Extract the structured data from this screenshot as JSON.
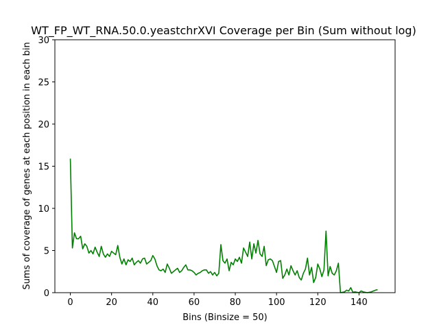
{
  "chart_data": {
    "type": "line",
    "title": "WT_FP_WT_RNA.50.0.yeastchrXVI Coverage per Bin (Sum without log)",
    "xlabel": "Bins (Binsize = 50)",
    "ylabel": "Sums of coverage of genes at each position in each bin",
    "xlim": [
      -7.5,
      157.5
    ],
    "ylim": [
      0,
      30
    ],
    "xticks": [
      0,
      20,
      40,
      60,
      80,
      100,
      120,
      140
    ],
    "yticks": [
      0,
      5,
      10,
      15,
      20,
      25,
      30
    ],
    "grid": false,
    "legend": "none",
    "series": [
      {
        "color": "#008000",
        "x": [
          0,
          1,
          2,
          3,
          4,
          5,
          6,
          7,
          8,
          9,
          10,
          11,
          12,
          13,
          14,
          15,
          16,
          17,
          18,
          19,
          20,
          21,
          22,
          23,
          24,
          25,
          26,
          27,
          28,
          29,
          30,
          31,
          32,
          33,
          34,
          35,
          36,
          37,
          38,
          39,
          40,
          41,
          42,
          43,
          44,
          45,
          46,
          47,
          48,
          49,
          50,
          51,
          52,
          53,
          54,
          55,
          56,
          57,
          58,
          59,
          60,
          61,
          62,
          63,
          64,
          65,
          66,
          67,
          68,
          69,
          70,
          71,
          72,
          73,
          74,
          75,
          76,
          77,
          78,
          79,
          80,
          81,
          82,
          83,
          84,
          85,
          86,
          87,
          88,
          89,
          90,
          91,
          92,
          93,
          94,
          95,
          96,
          97,
          98,
          99,
          100,
          101,
          102,
          103,
          104,
          105,
          106,
          107,
          108,
          109,
          110,
          111,
          112,
          113,
          114,
          115,
          116,
          117,
          118,
          119,
          120,
          121,
          122,
          123,
          124,
          125,
          126,
          127,
          128,
          129,
          130,
          131,
          132,
          133,
          134,
          135,
          136,
          137,
          138,
          139,
          140,
          141,
          142,
          143,
          144,
          145,
          146,
          147,
          148,
          149
        ],
        "y": [
          15.9,
          5.3,
          7.1,
          6.4,
          6.4,
          6.7,
          5.2,
          5.8,
          5.5,
          4.7,
          5.0,
          4.6,
          5.4,
          4.8,
          4.3,
          5.5,
          4.6,
          4.2,
          4.6,
          4.3,
          4.9,
          4.7,
          4.5,
          5.6,
          4.2,
          3.4,
          4.0,
          3.3,
          3.9,
          3.7,
          4.1,
          3.3,
          3.6,
          3.8,
          3.5,
          4.0,
          4.1,
          3.4,
          3.6,
          3.8,
          4.4,
          4.0,
          3.2,
          2.7,
          2.6,
          2.8,
          2.4,
          3.4,
          2.9,
          2.3,
          2.5,
          2.7,
          2.9,
          2.4,
          2.6,
          3.0,
          3.3,
          2.7,
          2.7,
          2.6,
          2.4,
          2.1,
          2.3,
          2.4,
          2.6,
          2.7,
          2.7,
          2.3,
          2.5,
          2.1,
          2.4,
          2.0,
          2.3,
          5.7,
          3.8,
          3.5,
          4.0,
          2.6,
          3.6,
          3.3,
          4.0,
          3.7,
          4.2,
          3.5,
          5.3,
          4.8,
          4.3,
          6.0,
          4.0,
          5.8,
          4.7,
          6.2,
          4.6,
          4.3,
          5.5,
          3.2,
          3.9,
          4.0,
          3.8,
          3.1,
          2.4,
          3.7,
          3.8,
          1.7,
          2.1,
          2.8,
          2.1,
          3.2,
          2.6,
          2.1,
          2.6,
          1.8,
          1.5,
          2.3,
          2.8,
          4.1,
          2.1,
          3.0,
          1.2,
          1.8,
          3.4,
          2.8,
          1.9,
          2.7,
          7.3,
          2.0,
          3.1,
          2.3,
          2.1,
          2.6,
          3.5,
          0.0,
          0.05,
          0.1,
          0.3,
          0.2,
          0.6,
          0.05,
          0.1,
          0.05,
          0.0,
          0.2,
          0.1,
          0.05,
          0.0,
          0.05,
          0.1,
          0.2,
          0.3,
          0.35
        ]
      }
    ]
  }
}
